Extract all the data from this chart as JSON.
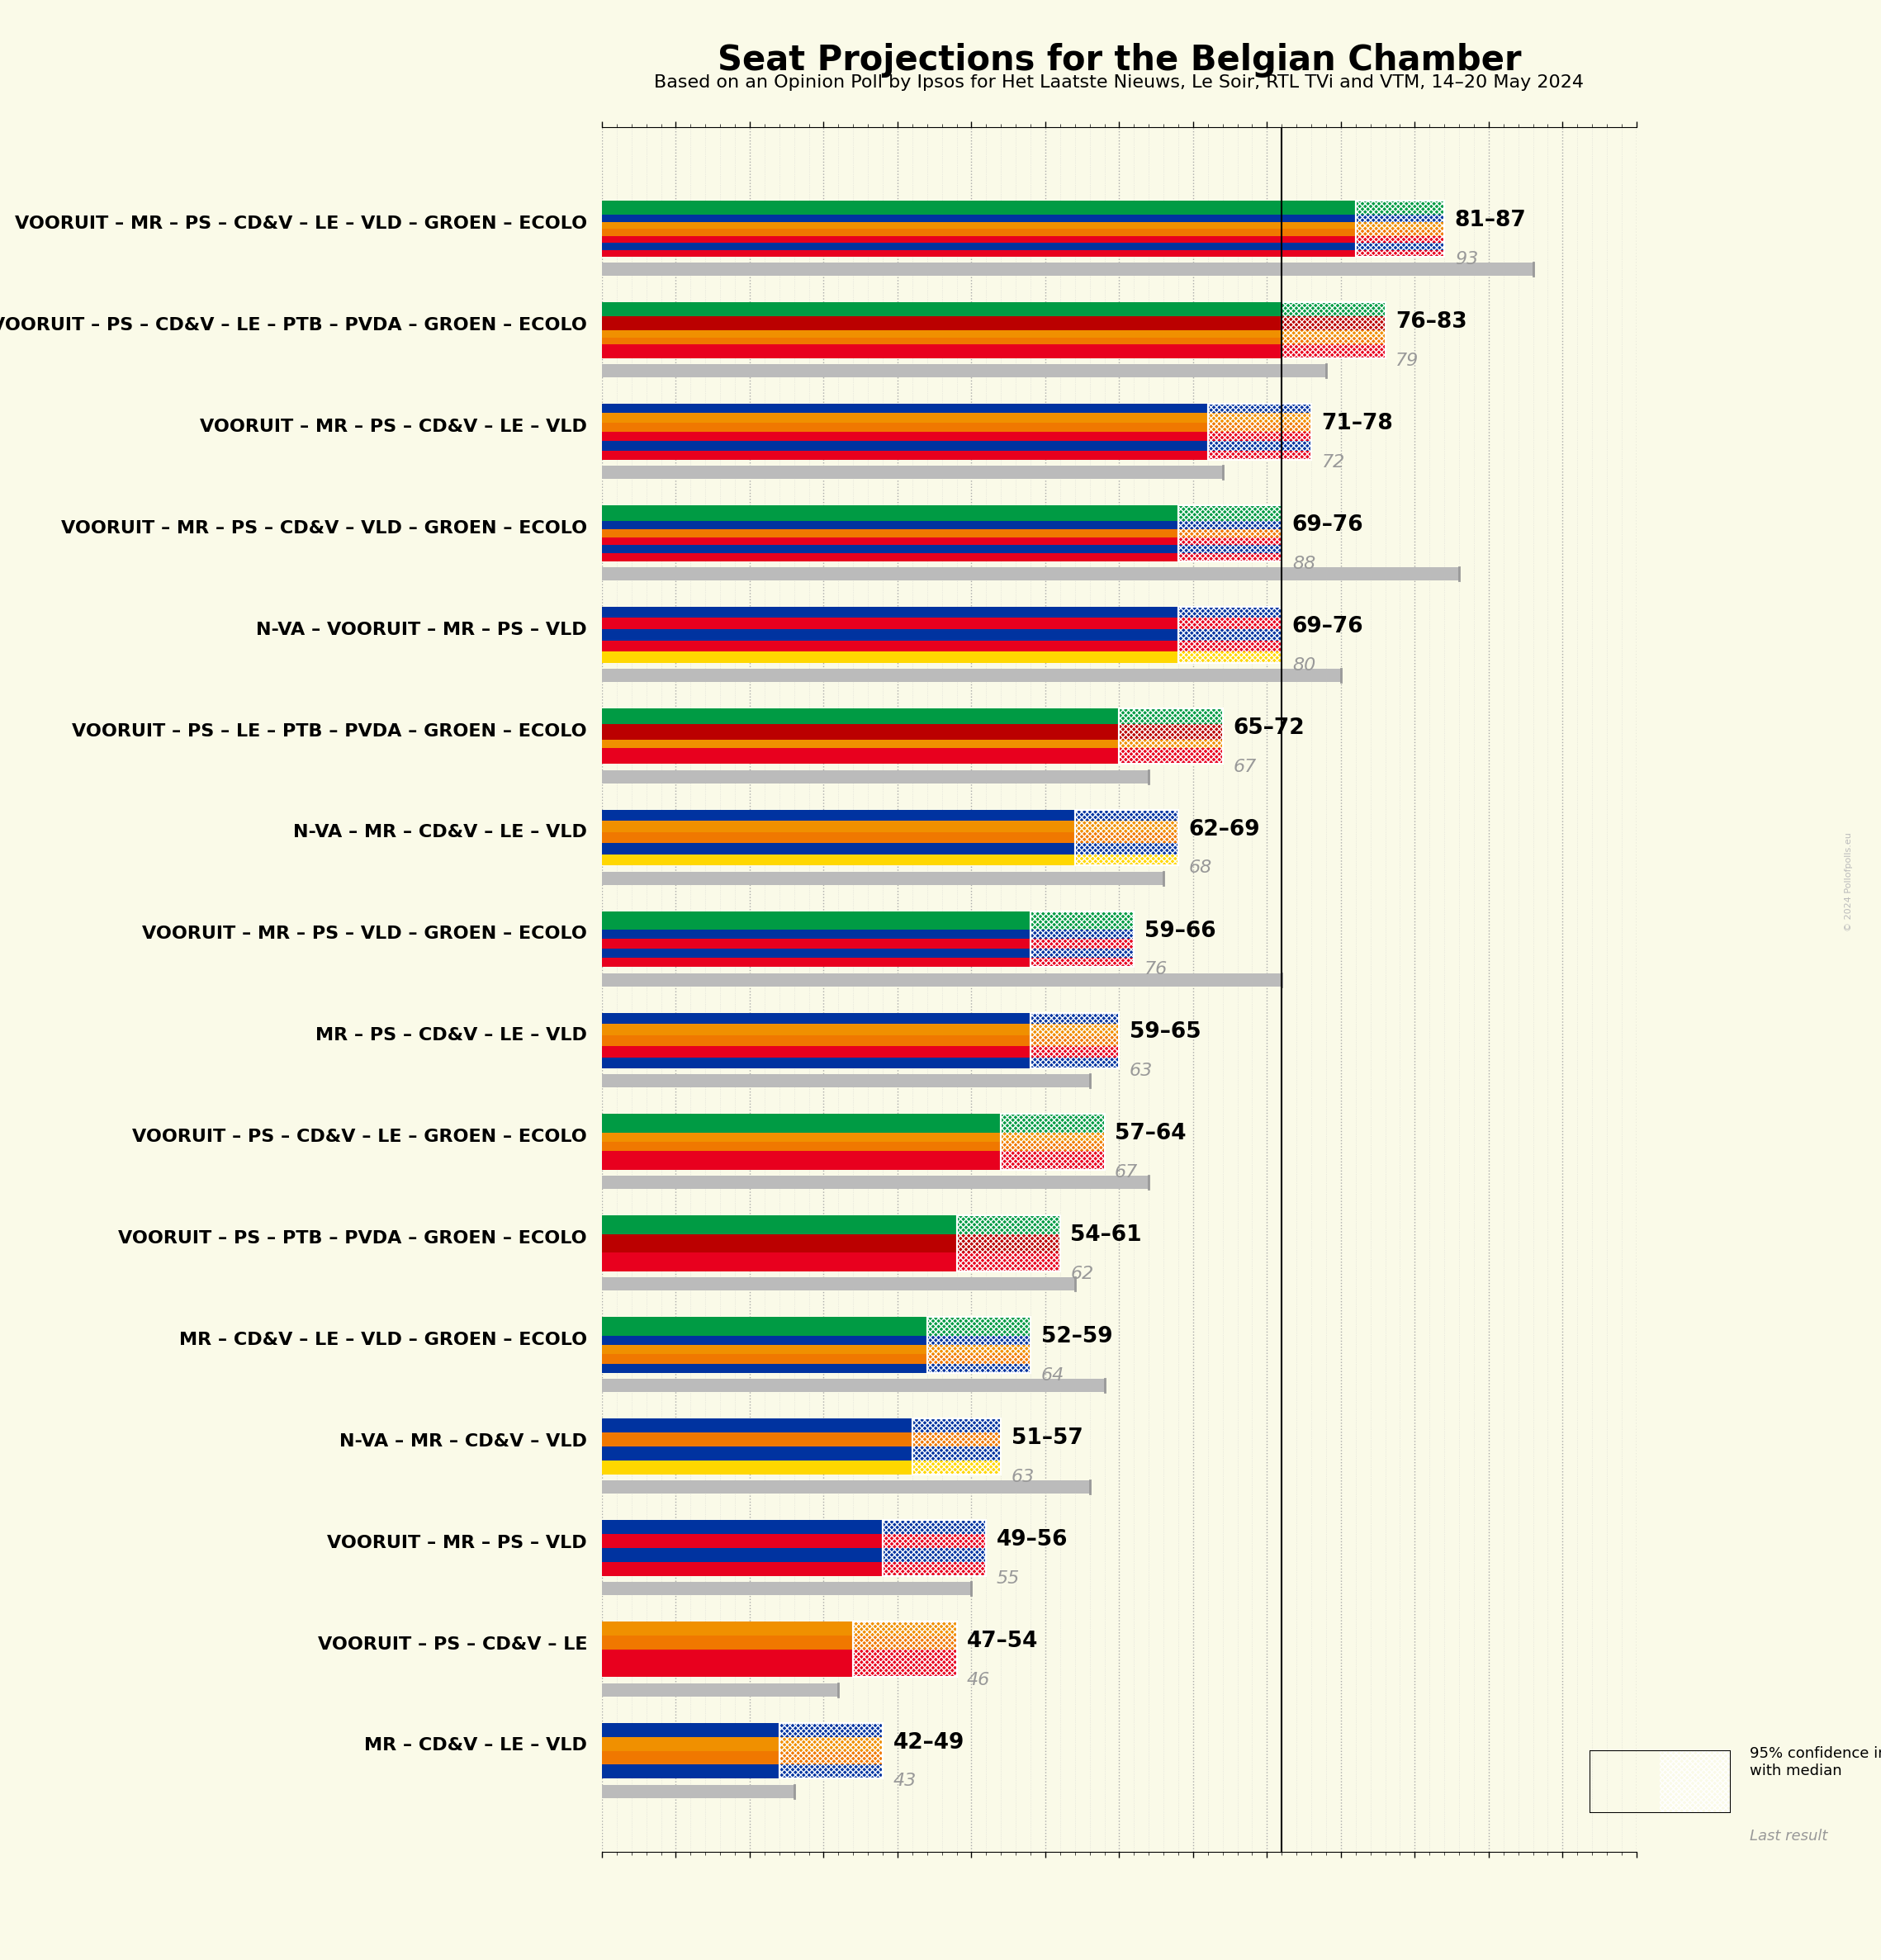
{
  "title": "Seat Projections for the Belgian Chamber",
  "subtitle": "Based on an Opinion Poll by Ipsos for Het Laatste Nieuws, Le Soir, RTL TVi and VTM, 14–20 May 2024",
  "background_color": "#FAFAE8",
  "coalitions": [
    {
      "label": "VOORUIT – MR – PS – CD&V – LE – VLD – GROEN – ECOLO",
      "low": 81,
      "high": 87,
      "last": 93,
      "underline": false,
      "stripes": [
        "#E8001E",
        "#0033A0",
        "#E8001E",
        "#F07800",
        "#F09000",
        "#0033A0",
        "#009B44",
        "#009B44"
      ]
    },
    {
      "label": "VOORUIT – PS – CD&V – LE – PTB – PVDA – GROEN – ECOLO",
      "low": 76,
      "high": 83,
      "last": 79,
      "underline": false,
      "stripes": [
        "#E8001E",
        "#E8001E",
        "#F07800",
        "#F09000",
        "#BB0000",
        "#BB0000",
        "#009B44",
        "#009B44"
      ]
    },
    {
      "label": "VOORUIT – MR – PS – CD&V – LE – VLD",
      "low": 71,
      "high": 78,
      "last": 72,
      "underline": false,
      "stripes": [
        "#E8001E",
        "#0033A0",
        "#E8001E",
        "#F07800",
        "#F09000",
        "#0033A0"
      ]
    },
    {
      "label": "VOORUIT – MR – PS – CD&V – VLD – GROEN – ECOLO",
      "low": 69,
      "high": 76,
      "last": 88,
      "underline": true,
      "stripes": [
        "#E8001E",
        "#0033A0",
        "#E8001E",
        "#F07800",
        "#0033A0",
        "#009B44",
        "#009B44"
      ]
    },
    {
      "label": "N-VA – VOORUIT – MR – PS – VLD",
      "low": 69,
      "high": 76,
      "last": 80,
      "underline": false,
      "stripes": [
        "#FFD700",
        "#E8001E",
        "#0033A0",
        "#E8001E",
        "#0033A0"
      ]
    },
    {
      "label": "VOORUIT – PS – LE – PTB – PVDA – GROEN – ECOLO",
      "low": 65,
      "high": 72,
      "last": 67,
      "underline": false,
      "stripes": [
        "#E8001E",
        "#E8001E",
        "#F09000",
        "#BB0000",
        "#BB0000",
        "#009B44",
        "#009B44"
      ]
    },
    {
      "label": "N-VA – MR – CD&V – LE – VLD",
      "low": 62,
      "high": 69,
      "last": 68,
      "underline": false,
      "stripes": [
        "#FFD700",
        "#0033A0",
        "#F07800",
        "#F09000",
        "#0033A0"
      ]
    },
    {
      "label": "VOORUIT – MR – PS – VLD – GROEN – ECOLO",
      "low": 59,
      "high": 66,
      "last": 76,
      "underline": false,
      "stripes": [
        "#E8001E",
        "#0033A0",
        "#E8001E",
        "#0033A0",
        "#009B44",
        "#009B44"
      ]
    },
    {
      "label": "MR – PS – CD&V – LE – VLD",
      "low": 59,
      "high": 65,
      "last": 63,
      "underline": false,
      "stripes": [
        "#0033A0",
        "#E8001E",
        "#F07800",
        "#F09000",
        "#0033A0"
      ]
    },
    {
      "label": "VOORUIT – PS – CD&V – LE – GROEN – ECOLO",
      "low": 57,
      "high": 64,
      "last": 67,
      "underline": false,
      "stripes": [
        "#E8001E",
        "#E8001E",
        "#F07800",
        "#F09000",
        "#009B44",
        "#009B44"
      ]
    },
    {
      "label": "VOORUIT – PS – PTB – PVDA – GROEN – ECOLO",
      "low": 54,
      "high": 61,
      "last": 62,
      "underline": false,
      "stripes": [
        "#E8001E",
        "#E8001E",
        "#BB0000",
        "#BB0000",
        "#009B44",
        "#009B44"
      ]
    },
    {
      "label": "MR – CD&V – LE – VLD – GROEN – ECOLO",
      "low": 52,
      "high": 59,
      "last": 64,
      "underline": false,
      "stripes": [
        "#0033A0",
        "#F07800",
        "#F09000",
        "#0033A0",
        "#009B44",
        "#009B44"
      ]
    },
    {
      "label": "N-VA – MR – CD&V – VLD",
      "low": 51,
      "high": 57,
      "last": 63,
      "underline": false,
      "stripes": [
        "#FFD700",
        "#0033A0",
        "#F07800",
        "#0033A0"
      ]
    },
    {
      "label": "VOORUIT – MR – PS – VLD",
      "low": 49,
      "high": 56,
      "last": 55,
      "underline": false,
      "stripes": [
        "#E8001E",
        "#0033A0",
        "#E8001E",
        "#0033A0"
      ]
    },
    {
      "label": "VOORUIT – PS – CD&V – LE",
      "low": 47,
      "high": 54,
      "last": 46,
      "underline": false,
      "stripes": [
        "#E8001E",
        "#E8001E",
        "#F07800",
        "#F09000"
      ]
    },
    {
      "label": "MR – CD&V – LE – VLD",
      "low": 42,
      "high": 49,
      "last": 43,
      "underline": false,
      "stripes": [
        "#0033A0",
        "#F07800",
        "#F09000",
        "#0033A0"
      ]
    }
  ],
  "majority_line": 76,
  "x_min": 30,
  "x_max": 100,
  "tick_major": 5,
  "tick_minor": 1,
  "bar_height": 0.55,
  "last_bar_height": 0.13,
  "last_bar_gap": 0.06,
  "range_label_fontsize": 19,
  "last_label_fontsize": 16,
  "coalition_label_fontsize": 16,
  "title_fontsize": 30,
  "subtitle_fontsize": 16
}
